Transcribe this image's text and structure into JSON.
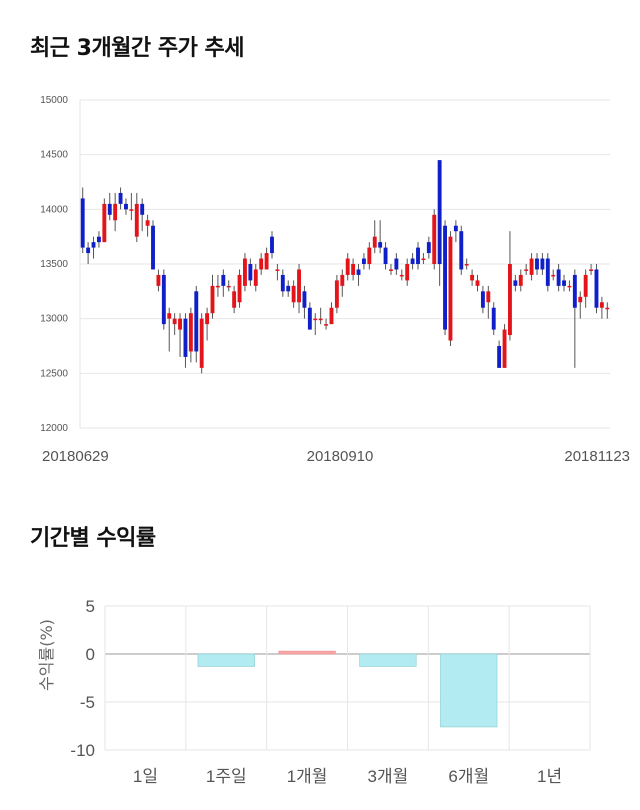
{
  "section1": {
    "title": "최근 3개월간 주가 추세"
  },
  "section2": {
    "title": "기간별 수익률"
  },
  "colors": {
    "up": "#e3151a",
    "down": "#1020c8",
    "wick": "#555555",
    "bar_pos": "#f7a9a8",
    "bar_neg": "#b2ebf2",
    "grid": "#e6e6e6"
  },
  "chart_data": [
    {
      "type": "candlestick",
      "title": "최근 3개월간 주가 추세",
      "ylim": [
        12000,
        15000
      ],
      "yticks": [
        12000,
        12500,
        13000,
        13500,
        14000,
        14500,
        15000
      ],
      "xtick_labels": [
        {
          "index": 0,
          "label": "20180629"
        },
        {
          "index": 47,
          "label": "20180910"
        },
        {
          "index": 96,
          "label": "20181123"
        }
      ],
      "candles": [
        [
          14100,
          13650,
          14200,
          13600
        ],
        [
          13650,
          13600,
          13700,
          13500
        ],
        [
          13700,
          13650,
          13750,
          13550
        ],
        [
          13750,
          13700,
          13800,
          13650
        ],
        [
          13700,
          14050,
          14100,
          13700
        ],
        [
          14050,
          13950,
          14150,
          13900
        ],
        [
          13900,
          14050,
          14150,
          13800
        ],
        [
          14150,
          14050,
          14200,
          14000
        ],
        [
          14050,
          14000,
          14100,
          13950
        ],
        [
          14000,
          14000,
          14150,
          13900
        ],
        [
          13750,
          14050,
          14150,
          13700
        ],
        [
          14050,
          13950,
          14100,
          13800
        ],
        [
          13850,
          13900,
          13950,
          13750
        ],
        [
          13850,
          13450,
          13900,
          13450
        ],
        [
          13300,
          13400,
          13450,
          13250
        ],
        [
          13400,
          12950,
          13450,
          12900
        ],
        [
          13000,
          13050,
          13100,
          12700
        ],
        [
          12950,
          13000,
          13050,
          12850
        ],
        [
          12900,
          13000,
          13050,
          12650
        ],
        [
          13000,
          12650,
          13050,
          12550
        ],
        [
          12700,
          13050,
          13100,
          12600
        ],
        [
          13250,
          12700,
          13300,
          12600
        ],
        [
          12550,
          13000,
          13050,
          12500
        ],
        [
          12950,
          13050,
          13100,
          12800
        ],
        [
          13050,
          13300,
          13400,
          13000
        ],
        [
          13300,
          13300,
          13400,
          13200
        ],
        [
          13400,
          13300,
          13450,
          13200
        ],
        [
          13300,
          13300,
          13350,
          13250
        ],
        [
          13100,
          13250,
          13300,
          13050
        ],
        [
          13150,
          13400,
          13450,
          13100
        ],
        [
          13300,
          13550,
          13600,
          13250
        ],
        [
          13500,
          13350,
          13550,
          13300
        ],
        [
          13300,
          13450,
          13500,
          13250
        ],
        [
          13450,
          13550,
          13600,
          13400
        ],
        [
          13450,
          13600,
          13650,
          13450
        ],
        [
          13750,
          13600,
          13800,
          13550
        ],
        [
          13450,
          13450,
          13500,
          13350
        ],
        [
          13400,
          13250,
          13450,
          13200
        ],
        [
          13300,
          13250,
          13350,
          13200
        ],
        [
          13150,
          13300,
          13350,
          13100
        ],
        [
          13150,
          13450,
          13500,
          13050
        ],
        [
          13250,
          13100,
          13300,
          13000
        ],
        [
          13100,
          12900,
          13150,
          12900
        ],
        [
          13000,
          13000,
          13050,
          12850
        ],
        [
          13000,
          13000,
          13100,
          12950
        ],
        [
          12950,
          12950,
          13000,
          12900
        ],
        [
          12950,
          13100,
          13150,
          12950
        ],
        [
          13100,
          13350,
          13400,
          13050
        ],
        [
          13300,
          13400,
          13450,
          13200
        ],
        [
          13400,
          13550,
          13600,
          13350
        ],
        [
          13400,
          13500,
          13550,
          13350
        ],
        [
          13450,
          13400,
          13500,
          13300
        ],
        [
          13550,
          13500,
          13600,
          13450
        ],
        [
          13500,
          13650,
          13700,
          13450
        ],
        [
          13650,
          13750,
          13900,
          13600
        ],
        [
          13700,
          13650,
          13900,
          13600
        ],
        [
          13650,
          13500,
          13700,
          13450
        ],
        [
          13450,
          13450,
          13500,
          13400
        ],
        [
          13550,
          13450,
          13600,
          13400
        ],
        [
          13400,
          13400,
          13450,
          13350
        ],
        [
          13350,
          13500,
          13550,
          13300
        ],
        [
          13550,
          13500,
          13600,
          13450
        ],
        [
          13650,
          13500,
          13700,
          13450
        ],
        [
          13550,
          13550,
          13600,
          13500
        ],
        [
          13700,
          13600,
          13750,
          13550
        ],
        [
          13500,
          13950,
          14000,
          13450
        ],
        [
          14450,
          13500,
          14450,
          13300
        ],
        [
          13850,
          12900,
          13900,
          12850
        ],
        [
          12800,
          13750,
          13800,
          12750
        ],
        [
          13850,
          13800,
          13900,
          13700
        ],
        [
          13800,
          13450,
          13850,
          13400
        ],
        [
          13500,
          13500,
          13550,
          13450
        ],
        [
          13350,
          13400,
          13450,
          13300
        ],
        [
          13300,
          13350,
          13400,
          13250
        ],
        [
          13250,
          13100,
          13300,
          13050
        ],
        [
          13150,
          13250,
          13300,
          13000
        ],
        [
          13100,
          12900,
          13150,
          12850
        ],
        [
          12750,
          12550,
          12800,
          12550
        ],
        [
          12550,
          12900,
          12950,
          12550
        ],
        [
          12850,
          13500,
          13800,
          12800
        ],
        [
          13350,
          13300,
          13400,
          13250
        ],
        [
          13300,
          13400,
          13450,
          13250
        ],
        [
          13450,
          13450,
          13500,
          13400
        ],
        [
          13400,
          13550,
          13600,
          13350
        ],
        [
          13550,
          13450,
          13600,
          13400
        ],
        [
          13550,
          13450,
          13600,
          13400
        ],
        [
          13550,
          13300,
          13600,
          13250
        ],
        [
          13400,
          13400,
          13450,
          13350
        ],
        [
          13450,
          13300,
          13500,
          13250
        ],
        [
          13350,
          13300,
          13400,
          13250
        ],
        [
          13300,
          13300,
          13350,
          13250
        ],
        [
          13400,
          13100,
          13450,
          12550
        ],
        [
          13150,
          13200,
          13250,
          13000
        ],
        [
          13200,
          13400,
          13450,
          13100
        ],
        [
          13450,
          13450,
          13500,
          13400
        ],
        [
          13450,
          13100,
          13500,
          13050
        ],
        [
          13100,
          13150,
          13200,
          13000
        ],
        [
          13100,
          13100,
          13150,
          13000
        ]
      ]
    },
    {
      "type": "bar",
      "title": "기간별 수익률",
      "ylabel": "수익률(%)",
      "categories": [
        "1일",
        "1주일",
        "1개월",
        "3개월",
        "6개월",
        "1년"
      ],
      "values": [
        0,
        -1.3,
        0.3,
        -1.3,
        -7.6,
        0
      ],
      "ylim": [
        -10,
        5
      ],
      "yticks": [
        5,
        0,
        -5,
        -10
      ]
    }
  ]
}
